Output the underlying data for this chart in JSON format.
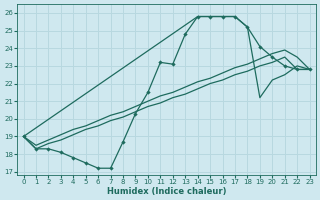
{
  "xlabel": "Humidex (Indice chaleur)",
  "bg_color": "#cfe8ef",
  "line_color": "#1e6b5e",
  "grid_color": "#b8d8e0",
  "xlim": [
    -0.5,
    23.5
  ],
  "ylim": [
    16.8,
    26.5
  ],
  "xticks": [
    0,
    1,
    2,
    3,
    4,
    5,
    6,
    7,
    8,
    9,
    10,
    11,
    12,
    13,
    14,
    15,
    16,
    17,
    18,
    19,
    20,
    21,
    22,
    23
  ],
  "yticks": [
    17,
    18,
    19,
    20,
    21,
    22,
    23,
    24,
    25,
    26
  ],
  "line1_x": [
    0,
    1,
    2,
    3,
    4,
    5,
    6,
    7,
    8,
    9,
    10,
    11,
    12,
    13,
    14,
    15,
    16,
    17,
    18,
    19,
    20,
    21,
    22,
    23
  ],
  "line1_y": [
    19.0,
    18.3,
    18.3,
    18.1,
    17.8,
    17.5,
    17.2,
    17.2,
    18.7,
    20.3,
    21.5,
    23.2,
    23.1,
    24.8,
    25.8,
    25.8,
    25.8,
    25.8,
    25.2,
    24.1,
    23.5,
    23.0,
    22.8,
    22.8
  ],
  "line2_x": [
    0,
    14,
    15,
    16,
    17,
    18,
    19,
    20,
    21,
    22,
    23
  ],
  "line2_y": [
    19.0,
    25.8,
    25.8,
    25.8,
    25.8,
    25.2,
    21.2,
    22.2,
    22.5,
    23.0,
    22.8
  ],
  "line3_x": [
    0,
    1,
    2,
    3,
    4,
    5,
    6,
    7,
    8,
    9,
    10,
    11,
    12,
    13,
    14,
    15,
    16,
    17,
    18,
    19,
    20,
    21,
    22,
    23
  ],
  "line3_y": [
    19.0,
    18.5,
    18.8,
    19.1,
    19.4,
    19.6,
    19.9,
    20.2,
    20.4,
    20.7,
    21.0,
    21.3,
    21.5,
    21.8,
    22.1,
    22.3,
    22.6,
    22.9,
    23.1,
    23.4,
    23.7,
    23.9,
    23.5,
    22.8
  ],
  "line4_x": [
    0,
    1,
    2,
    3,
    4,
    5,
    6,
    7,
    8,
    9,
    10,
    11,
    12,
    13,
    14,
    15,
    16,
    17,
    18,
    19,
    20,
    21,
    22,
    23
  ],
  "line4_y": [
    19.0,
    18.3,
    18.6,
    18.8,
    19.1,
    19.4,
    19.6,
    19.9,
    20.1,
    20.4,
    20.7,
    20.9,
    21.2,
    21.4,
    21.7,
    22.0,
    22.2,
    22.5,
    22.7,
    23.0,
    23.2,
    23.5,
    22.8,
    22.8
  ]
}
